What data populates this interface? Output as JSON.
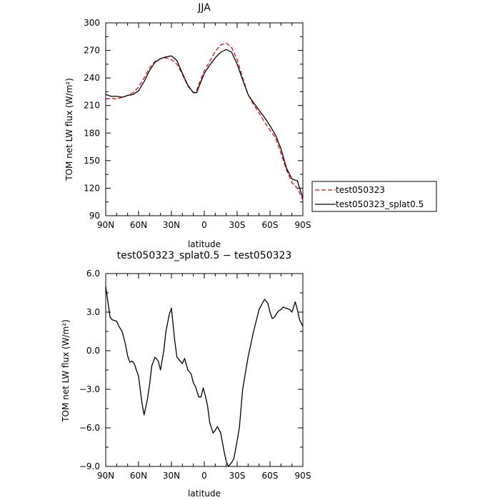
{
  "chart_data": [
    {
      "type": "line",
      "title": "JJA",
      "xlabel": "latitude",
      "ylabel": "TOM net LW flux (W/m²)",
      "ylim": [
        90,
        300
      ],
      "xlim": [
        90,
        -90
      ],
      "x_ticks": [
        90,
        60,
        30,
        0,
        -30,
        -60,
        -90
      ],
      "x_tick_labels": [
        "90N",
        "60N",
        "30N",
        "0",
        "30S",
        "60S",
        "90S"
      ],
      "y_ticks": [
        90,
        120,
        150,
        180,
        210,
        240,
        270,
        300
      ],
      "y_tick_labels": [
        "90",
        "120",
        "150",
        "180",
        "210",
        "240",
        "270",
        "300"
      ],
      "legend_position": "right",
      "series": [
        {
          "name": "test050323",
          "style": "dashed",
          "color": "#ff0000",
          "x": [
            90,
            85,
            80,
            75,
            70,
            65,
            60,
            55,
            50,
            45,
            40,
            35,
            30,
            25,
            20,
            15,
            10,
            7,
            5,
            0,
            -5,
            -10,
            -15,
            -20,
            -25,
            -30,
            -35,
            -40,
            -45,
            -50,
            -55,
            -60,
            -65,
            -70,
            -75,
            -80,
            -85,
            -90
          ],
          "values": [
            217,
            218,
            217,
            219,
            221,
            224,
            230,
            240,
            251,
            258,
            261,
            262,
            260,
            255,
            244,
            231,
            224,
            226,
            233,
            248,
            258,
            269,
            276,
            278,
            273,
            260,
            240,
            222,
            211,
            202,
            192,
            183,
            175,
            158,
            140,
            126,
            120,
            107
          ]
        },
        {
          "name": "test050323_splat0.5",
          "style": "solid",
          "color": "#000000",
          "x": [
            90,
            85,
            80,
            75,
            70,
            65,
            60,
            55,
            50,
            45,
            40,
            35,
            30,
            25,
            20,
            15,
            10,
            7,
            5,
            0,
            -5,
            -10,
            -15,
            -20,
            -25,
            -30,
            -35,
            -40,
            -45,
            -50,
            -55,
            -60,
            -65,
            -70,
            -75,
            -80,
            -85,
            -90
          ],
          "values": [
            222,
            220,
            220,
            219,
            221,
            222,
            226,
            236,
            248,
            257,
            261,
            263,
            264,
            259,
            245,
            232,
            224,
            224,
            230,
            245,
            254,
            262,
            268,
            271,
            268,
            255,
            238,
            222,
            213,
            205,
            197,
            188,
            178,
            163,
            142,
            130,
            128,
            109
          ]
        }
      ]
    },
    {
      "type": "line",
      "title": "test050323_splat0.5 − test050323",
      "xlabel": "latitude",
      "ylabel": "TOM net LW flux (W/m²)",
      "ylim": [
        -9,
        6
      ],
      "xlim": [
        90,
        -90
      ],
      "x_ticks": [
        90,
        60,
        30,
        0,
        -30,
        -60,
        -90
      ],
      "x_tick_labels": [
        "90N",
        "60N",
        "30N",
        "0",
        "30S",
        "60S",
        "90S"
      ],
      "y_ticks": [
        -9,
        -6,
        -3,
        0,
        3,
        6
      ],
      "y_tick_labels": [
        "−9.0",
        "−6.0",
        "−3.0",
        "0.0",
        "3.0",
        "6.0"
      ],
      "series": [
        {
          "color": "#000000",
          "style": "solid",
          "x": [
            90,
            88,
            86,
            84,
            80,
            78,
            75,
            72,
            70,
            68,
            66,
            64,
            60,
            57,
            55,
            52,
            50,
            48,
            45,
            42,
            40,
            37,
            35,
            32,
            30,
            27,
            25,
            22,
            20,
            18,
            15,
            12,
            10,
            8,
            5,
            3,
            1,
            -1,
            -3,
            -5,
            -8,
            -10,
            -12,
            -15,
            -18,
            -20,
            -22,
            -25,
            -27,
            -30,
            -32,
            -35,
            -40,
            -45,
            -50,
            -55,
            -58,
            -60,
            -62,
            -64,
            -66,
            -68,
            -70,
            -72,
            -75,
            -78,
            -80,
            -83,
            -85,
            -87,
            -90
          ],
          "values": [
            5.0,
            3.8,
            2.6,
            2.4,
            2.3,
            1.9,
            1.5,
            0.5,
            -0.4,
            -0.9,
            -0.8,
            -1.0,
            -2.0,
            -4.0,
            -5.0,
            -3.8,
            -2.7,
            -1.2,
            -0.5,
            -0.8,
            -1.5,
            0.0,
            1.5,
            2.8,
            3.3,
            0.8,
            -0.5,
            -0.8,
            -1.0,
            -0.6,
            -1.5,
            -1.8,
            -2.5,
            -2.8,
            -3.6,
            -3.6,
            -2.9,
            -3.5,
            -4.3,
            -5.6,
            -6.4,
            -6.2,
            -5.9,
            -6.4,
            -7.8,
            -8.6,
            -9.0,
            -8.7,
            -8.4,
            -7.0,
            -6.0,
            -3.0,
            -0.5,
            1.5,
            3.2,
            4.0,
            3.7,
            3.0,
            2.5,
            2.6,
            2.9,
            3.1,
            3.2,
            3.4,
            3.3,
            3.2,
            3.0,
            3.8,
            3.2,
            2.4,
            1.9
          ]
        }
      ]
    }
  ]
}
